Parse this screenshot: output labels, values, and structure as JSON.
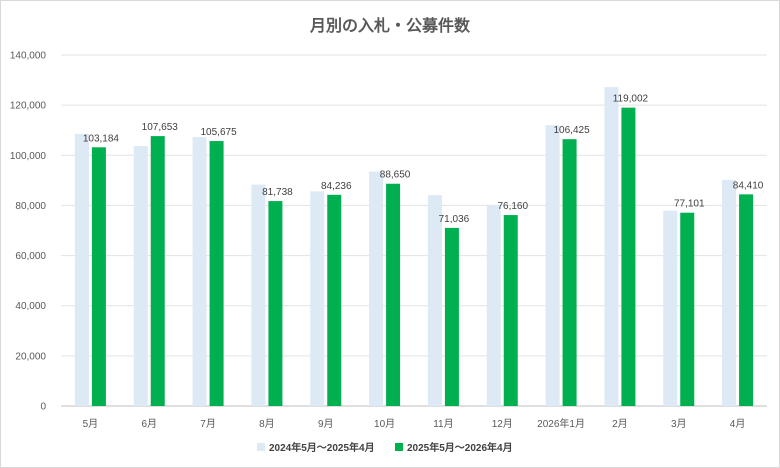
{
  "chart_data": {
    "type": "bar",
    "title": "月別の入札・公募件数",
    "categories": [
      "5月",
      "6月",
      "7月",
      "8月",
      "9月",
      "10月",
      "11月",
      "12月",
      "2026年1月",
      "2月",
      "3月",
      "4月"
    ],
    "ylim": [
      0,
      140000
    ],
    "yticks": [
      0,
      20000,
      40000,
      60000,
      80000,
      100000,
      120000,
      140000
    ],
    "ytick_labels": [
      "0",
      "20,000",
      "40,000",
      "60,000",
      "80,000",
      "100,000",
      "120,000",
      "140,000"
    ],
    "grid": true,
    "legend_position": "bottom",
    "series": [
      {
        "name": "2024年5月～2025年4月",
        "color": "#dde9f5",
        "values": [
          108500,
          103700,
          107300,
          88300,
          85600,
          93500,
          84100,
          80200,
          112000,
          127200,
          77900,
          90200
        ],
        "data_labels": false
      },
      {
        "name": "2025年5月～2026年4月",
        "color": "#00b050",
        "values": [
          103184,
          107653,
          105675,
          81738,
          84236,
          88650,
          71036,
          76160,
          106425,
          119002,
          77101,
          84410
        ],
        "labels": [
          "103,184",
          "107,653",
          "105,675",
          "81,738",
          "84,236",
          "88,650",
          "71,036",
          "76,160",
          "106,425",
          "119,002",
          "77,101",
          "84,410"
        ],
        "data_labels": true
      }
    ]
  }
}
